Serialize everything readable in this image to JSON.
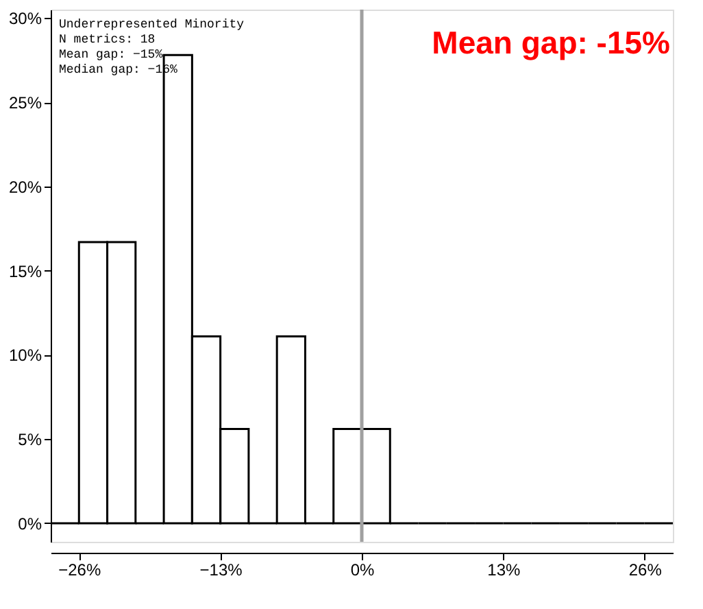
{
  "chart_data": {
    "type": "histogram",
    "bins": [
      -28.6,
      -26,
      -23.4,
      -20.8,
      -18.2,
      -15.6,
      -13,
      -10.4,
      -7.8,
      -5.2,
      -2.6,
      0,
      2.6,
      5.2,
      7.8,
      10.4,
      13,
      15.6,
      18.2,
      20.8,
      23.4,
      26,
      28.6
    ],
    "values": [
      0,
      16.7,
      16.7,
      0,
      27.8,
      11.1,
      5.6,
      0,
      11.1,
      0,
      5.6,
      5.6,
      0,
      0,
      0,
      0,
      0,
      0,
      0,
      0,
      0,
      0
    ],
    "color": "#000000",
    "xlim": [
      -28.6,
      28.6
    ],
    "xticks": [
      {
        "value": -26,
        "label": "−26%"
      },
      {
        "value": -13,
        "label": "−13%"
      },
      {
        "value": 0,
        "label": "0%"
      },
      {
        "value": 13,
        "label": "13%"
      },
      {
        "value": 26,
        "label": "26%"
      }
    ],
    "ylim": [
      -1.1,
      30.5
    ],
    "yticks": [
      {
        "value": 0,
        "label": "0%"
      },
      {
        "value": 5,
        "label": "5%"
      },
      {
        "value": 10,
        "label": "10%"
      },
      {
        "value": 15,
        "label": "15%"
      },
      {
        "value": 20,
        "label": "20%"
      },
      {
        "value": 25,
        "label": "25%"
      },
      {
        "value": 30,
        "label": "30%"
      }
    ],
    "ref_lines": [
      {
        "axis": "x",
        "value": 0,
        "color": "#a0a0a0"
      }
    ],
    "annotations": [
      "Underrepresented Minority\nN metrics: 18\nMean gap: −15%\nMedian gap: −16%",
      "Mean gap: -15%"
    ],
    "grid": false
  }
}
